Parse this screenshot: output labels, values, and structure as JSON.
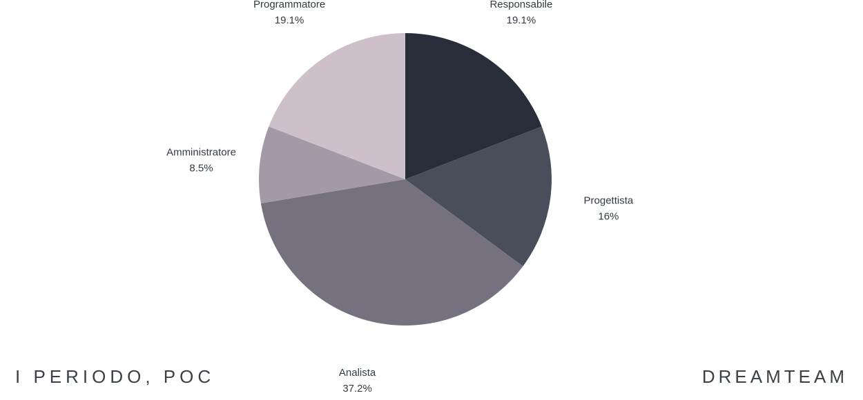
{
  "footer": {
    "left_text": "I PERIODO, POC",
    "right_text": "DREAMTEAM"
  },
  "chart_data": {
    "type": "pie",
    "title": "",
    "start": "top, clockwise",
    "slices": [
      {
        "label": "Responsabile",
        "value": 19.1,
        "value_label": "19.1%",
        "color": "#272e39"
      },
      {
        "label": "Progettista",
        "value": 16,
        "value_label": "16%",
        "color": "#4a4e5a"
      },
      {
        "label": "Analista",
        "value": 37.2,
        "value_label": "37.2%",
        "color": "#75717f"
      },
      {
        "label": "Amministratore",
        "value": 8.5,
        "value_label": "8.5%",
        "color": "#a29aa7"
      },
      {
        "label": "Programmatore",
        "value": 19.1,
        "value_label": "19.1%",
        "color": "#cdc0c8"
      }
    ]
  }
}
